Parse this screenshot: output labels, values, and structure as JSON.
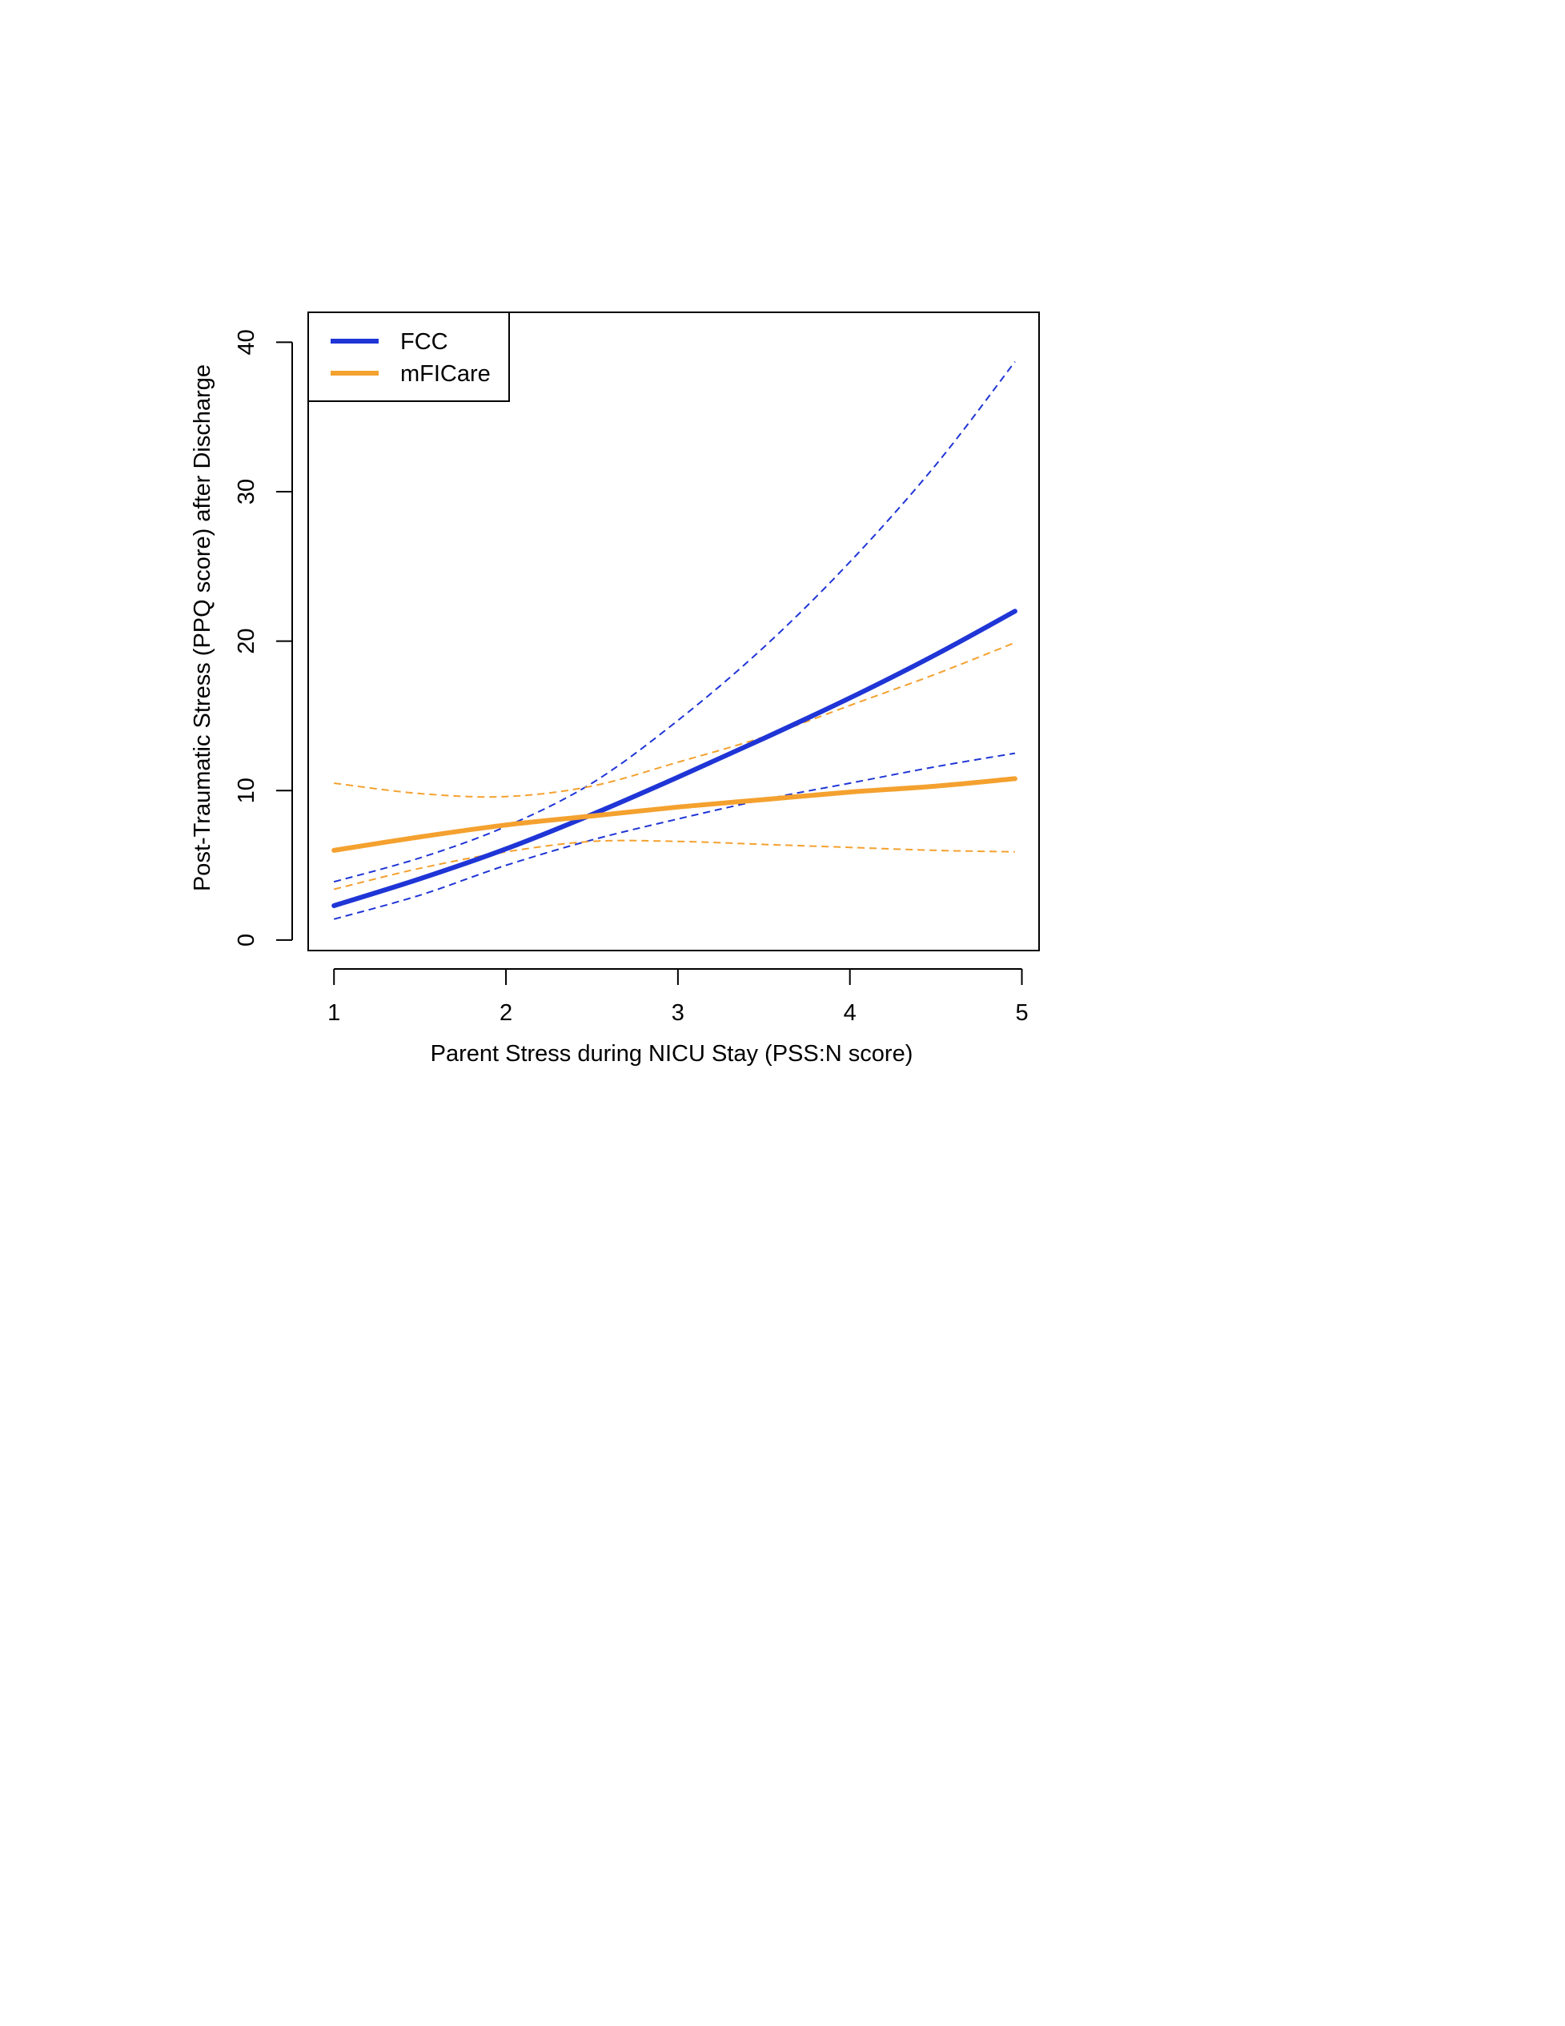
{
  "chart_data": {
    "type": "line",
    "xlabel": "Parent Stress during NICU Stay (PSS:N score)",
    "ylabel": "Post-Traumatic Stress (PPQ score) after Discharge",
    "xlim": [
      0.85,
      5.1
    ],
    "ylim": [
      -0.7,
      42.0
    ],
    "x_ticks": [
      "1",
      "2",
      "3",
      "4",
      "5"
    ],
    "y_ticks": [
      "0",
      "10",
      "20",
      "30",
      "40"
    ],
    "grid": false,
    "legend_position": "top-left",
    "x": [
      1.0,
      1.5,
      2.0,
      2.5,
      3.0,
      3.5,
      4.0,
      4.5,
      4.96
    ],
    "series": [
      {
        "name": "FCC",
        "color": "#1f35d6",
        "style": "solid",
        "values": [
          2.3,
          4.1,
          6.1,
          8.4,
          10.9,
          13.5,
          16.2,
          19.1,
          22.0
        ],
        "lower": [
          1.4,
          3.0,
          5.0,
          6.7,
          8.1,
          9.4,
          10.5,
          11.6,
          12.5
        ],
        "upper": [
          3.9,
          5.5,
          7.6,
          10.5,
          14.7,
          19.6,
          25.3,
          31.8,
          38.7
        ]
      },
      {
        "name": "mFICare",
        "color": "#f4a12f",
        "style": "solid",
        "values": [
          6.0,
          6.9,
          7.7,
          8.3,
          8.9,
          9.4,
          9.9,
          10.3,
          10.8
        ],
        "lower": [
          3.4,
          4.8,
          5.9,
          6.6,
          6.6,
          6.4,
          6.2,
          6.0,
          5.9
        ],
        "upper": [
          10.5,
          9.8,
          9.6,
          10.3,
          11.9,
          13.6,
          15.7,
          17.8,
          19.9
        ]
      }
    ]
  }
}
